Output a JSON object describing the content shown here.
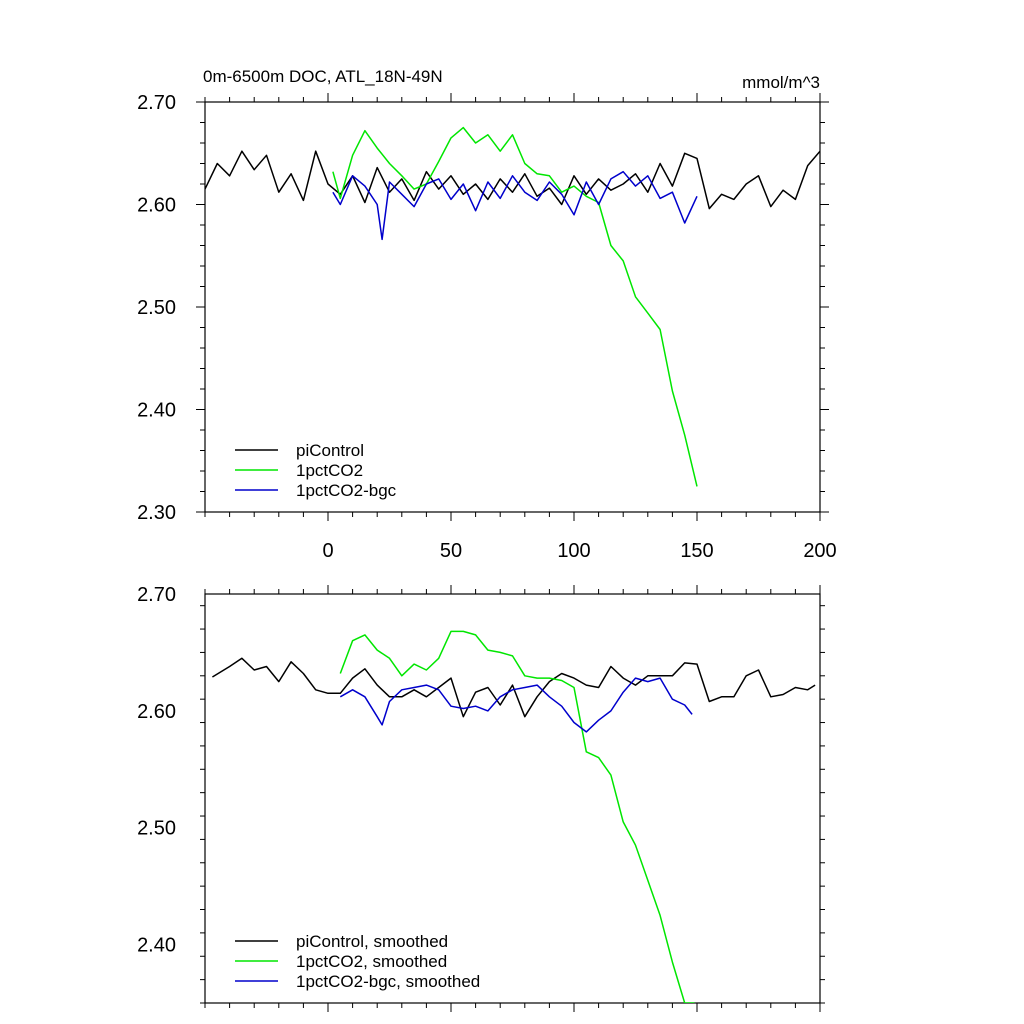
{
  "chart_data": [
    {
      "type": "line",
      "title": "0m-6500m DOC, ATL_18N-49N",
      "units": "mmol/m^3",
      "xlim": [
        -50,
        200
      ],
      "ylim": [
        2.3,
        2.7
      ],
      "x_tick_values": [
        0,
        50,
        100,
        150,
        200
      ],
      "x_tick_labels": [
        "0",
        "50",
        "100",
        "150",
        "200"
      ],
      "y_tick_values": [
        2.3,
        2.4,
        2.5,
        2.6,
        2.7
      ],
      "y_tick_labels": [
        "2.30",
        "2.40",
        "2.50",
        "2.60",
        "2.70"
      ],
      "legend_position": "bottom-left",
      "series": [
        {
          "name": "piControl",
          "color": "#000000",
          "x": [
            -50,
            -45,
            -40,
            -35,
            -30,
            -25,
            -20,
            -15,
            -10,
            -5,
            0,
            5,
            10,
            15,
            20,
            25,
            30,
            35,
            40,
            45,
            50,
            55,
            60,
            65,
            70,
            75,
            80,
            85,
            90,
            95,
            100,
            105,
            110,
            115,
            120,
            125,
            130,
            135,
            140,
            145,
            150,
            155,
            160,
            165,
            170,
            175,
            180,
            185,
            190,
            195,
            200
          ],
          "values": [
            2.615,
            2.64,
            2.628,
            2.652,
            2.634,
            2.648,
            2.612,
            2.63,
            2.604,
            2.652,
            2.62,
            2.61,
            2.628,
            2.602,
            2.636,
            2.612,
            2.625,
            2.604,
            2.632,
            2.615,
            2.628,
            2.61,
            2.62,
            2.605,
            2.625,
            2.612,
            2.63,
            2.608,
            2.616,
            2.6,
            2.628,
            2.61,
            2.625,
            2.614,
            2.62,
            2.63,
            2.612,
            2.64,
            2.618,
            2.65,
            2.645,
            2.596,
            2.61,
            2.605,
            2.62,
            2.628,
            2.598,
            2.614,
            2.605,
            2.638,
            2.652
          ]
        },
        {
          "name": "1pctCO2",
          "color": "#00e600",
          "x": [
            2,
            5,
            10,
            15,
            20,
            25,
            30,
            35,
            40,
            45,
            50,
            55,
            60,
            65,
            70,
            75,
            80,
            85,
            90,
            95,
            100,
            105,
            110,
            115,
            120,
            125,
            130,
            135,
            140,
            145,
            150
          ],
          "values": [
            2.632,
            2.606,
            2.648,
            2.672,
            2.655,
            2.64,
            2.628,
            2.615,
            2.62,
            2.642,
            2.665,
            2.675,
            2.66,
            2.668,
            2.652,
            2.668,
            2.64,
            2.63,
            2.628,
            2.612,
            2.618,
            2.608,
            2.602,
            2.56,
            2.545,
            2.51,
            2.494,
            2.478,
            2.418,
            2.375,
            2.325
          ]
        },
        {
          "name": "1pctCO2-bgc",
          "color": "#0000cc",
          "x": [
            2,
            5,
            10,
            15,
            20,
            22,
            25,
            30,
            35,
            40,
            45,
            50,
            55,
            60,
            65,
            70,
            75,
            80,
            85,
            90,
            95,
            100,
            105,
            110,
            115,
            120,
            125,
            130,
            135,
            140,
            145,
            150
          ],
          "values": [
            2.612,
            2.6,
            2.628,
            2.618,
            2.6,
            2.566,
            2.622,
            2.61,
            2.598,
            2.62,
            2.625,
            2.605,
            2.62,
            2.594,
            2.622,
            2.606,
            2.628,
            2.612,
            2.604,
            2.622,
            2.61,
            2.59,
            2.622,
            2.6,
            2.625,
            2.632,
            2.618,
            2.628,
            2.606,
            2.612,
            2.582,
            2.608
          ]
        }
      ]
    },
    {
      "type": "line",
      "xlim": [
        -50,
        200
      ],
      "ylim": [
        2.35,
        2.7
      ],
      "x_tick_values": [
        0,
        50,
        100,
        150,
        200
      ],
      "y_tick_values": [
        2.4,
        2.5,
        2.6,
        2.7
      ],
      "y_tick_labels": [
        "2.40",
        "2.50",
        "2.60",
        "2.70"
      ],
      "legend_position": "bottom-left",
      "series": [
        {
          "name": "piControl, smoothed",
          "color": "#000000",
          "x": [
            -47,
            -40,
            -35,
            -30,
            -25,
            -20,
            -15,
            -10,
            -5,
            0,
            5,
            10,
            15,
            20,
            25,
            30,
            35,
            40,
            45,
            50,
            55,
            60,
            65,
            70,
            75,
            80,
            85,
            90,
            95,
            100,
            105,
            110,
            115,
            120,
            125,
            130,
            135,
            140,
            145,
            150,
            155,
            160,
            165,
            170,
            175,
            180,
            185,
            190,
            195,
            198
          ],
          "values": [
            2.629,
            2.638,
            2.645,
            2.635,
            2.638,
            2.625,
            2.642,
            2.632,
            2.618,
            2.615,
            2.615,
            2.628,
            2.636,
            2.622,
            2.612,
            2.612,
            2.618,
            2.612,
            2.62,
            2.628,
            2.595,
            2.616,
            2.62,
            2.605,
            2.622,
            2.595,
            2.612,
            2.625,
            2.632,
            2.628,
            2.622,
            2.62,
            2.638,
            2.628,
            2.622,
            2.63,
            2.63,
            2.63,
            2.641,
            2.64,
            2.608,
            2.612,
            2.612,
            2.63,
            2.635,
            2.612,
            2.614,
            2.62,
            2.618,
            2.622
          ]
        },
        {
          "name": "1pctCO2, smoothed",
          "color": "#00e600",
          "x": [
            5,
            10,
            15,
            20,
            25,
            30,
            35,
            40,
            45,
            50,
            55,
            60,
            65,
            70,
            75,
            80,
            85,
            90,
            95,
            100,
            105,
            110,
            115,
            120,
            125,
            130,
            135,
            140,
            145,
            149
          ],
          "values": [
            2.632,
            2.66,
            2.665,
            2.652,
            2.645,
            2.63,
            2.64,
            2.635,
            2.645,
            2.668,
            2.668,
            2.665,
            2.652,
            2.65,
            2.647,
            2.63,
            2.628,
            2.628,
            2.626,
            2.62,
            2.565,
            2.56,
            2.545,
            2.505,
            2.485,
            2.455,
            2.425,
            2.385,
            2.35,
            2.35
          ]
        },
        {
          "name": "1pctCO2-bgc, smoothed",
          "color": "#0000cc",
          "x": [
            5,
            10,
            15,
            20,
            22,
            25,
            30,
            35,
            40,
            45,
            50,
            55,
            60,
            65,
            70,
            75,
            80,
            85,
            90,
            95,
            100,
            105,
            110,
            115,
            120,
            125,
            130,
            135,
            140,
            145,
            148
          ],
          "values": [
            2.612,
            2.618,
            2.612,
            2.595,
            2.588,
            2.608,
            2.618,
            2.62,
            2.622,
            2.618,
            2.604,
            2.602,
            2.604,
            2.6,
            2.612,
            2.618,
            2.62,
            2.622,
            2.612,
            2.604,
            2.59,
            2.582,
            2.592,
            2.6,
            2.616,
            2.628,
            2.625,
            2.628,
            2.61,
            2.605,
            2.597
          ]
        }
      ]
    }
  ]
}
